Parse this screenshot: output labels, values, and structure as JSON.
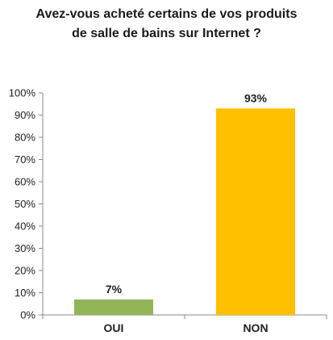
{
  "chart_data": {
    "type": "bar",
    "title_lines": [
      "Avez-vous acheté certains de vos produits",
      "de salle de bains sur Internet ?"
    ],
    "categories": [
      "OUI",
      "NON"
    ],
    "values": [
      7,
      93
    ],
    "data_labels": [
      "7%",
      "93%"
    ],
    "bar_colors": [
      "#92b558",
      "#ffc000"
    ],
    "ylim": [
      0,
      100
    ],
    "yticks": [
      0,
      10,
      20,
      30,
      40,
      50,
      60,
      70,
      80,
      90,
      100
    ],
    "ytick_labels": [
      "0%",
      "10%",
      "20%",
      "30%",
      "40%",
      "50%",
      "60%",
      "70%",
      "80%",
      "90%",
      "100%"
    ],
    "grid": false,
    "legend": "none"
  }
}
